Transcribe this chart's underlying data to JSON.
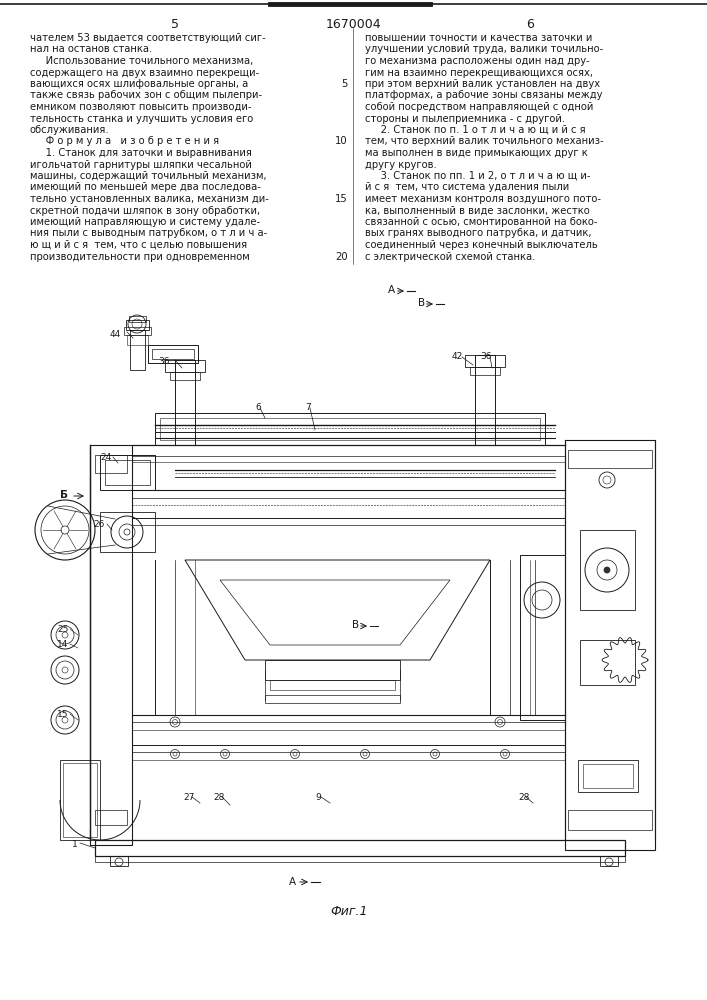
{
  "page_numbers_left": "5",
  "page_numbers_center": "1670004",
  "page_numbers_right": "6",
  "left_text": [
    "чателем 53 выдается соответствующий сиг-",
    "нал на останов станка.",
    "     Использование точильного механизма,",
    "содержащего на двух взаимно перекрещи-",
    "вающихся осях шлифовальные органы, а",
    "также связь рабочих зон с общим пылепри-",
    "емником позволяют повысить производи-",
    "тельность станка и улучшить условия его",
    "обслуживания.",
    "     Ф о р м у л а   и з о б р е т е н и я",
    "     1. Станок для заточки и выравнивания",
    "игольчатой гарнитуры шляпки чесальной",
    "машины, содержащий точильный механизм,",
    "имеющий по меньшей мере два последова-",
    "тельно установленных валика, механизм ди-",
    "скретной подачи шляпок в зону обработки,",
    "имеющий направляющую и систему удале-",
    "ния пыли с выводным патрубком, о т л и ч а-",
    "ю щ и й с я  тем, что с целью повышения",
    "производительности при одновременном"
  ],
  "right_text": [
    "повышении точности и качества заточки и",
    "улучшении условий труда, валики точильно-",
    "го механизма расположены один над дру-",
    "гим на взаимно перекрещивающихся осях,",
    "при этом верхний валик установлен на двух",
    "платформах, а рабочие зоны связаны между",
    "собой посредством направляющей с одной",
    "стороны и пылеприемника - с другой.",
    "     2. Станок по п. 1 о т л и ч а ю щ и й с я",
    "тем, что верхний валик точильного механиз-",
    "ма выполнен в виде примыкающих друг к",
    "другу кругов.",
    "     3. Станок по пп. 1 и 2, о т л и ч а ю щ и-",
    "й с я  тем, что система удаления пыли",
    "имеет механизм контроля воздушного пото-",
    "ка, выполненный в виде заслонки, жестко",
    "связанной с осью, смонтированной на боко-",
    "вых гранях выводного патрубка, и датчик,",
    "соединенный через конечный выключатель",
    "с электрической схемой станка."
  ],
  "fig_caption": "Фиг.1",
  "bg_color": "#ffffff",
  "text_color": "#1a1a1a",
  "line_color": "#1a1a1a",
  "text_fs": 7.2,
  "label_fs": 6.5
}
